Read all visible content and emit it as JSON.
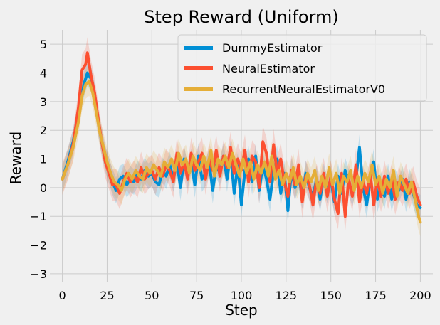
{
  "chart_data": {
    "type": "line",
    "title": "Step Reward (Uniform)",
    "xlabel": "Step",
    "ylabel": "Reward",
    "xlim": [
      -7,
      207
    ],
    "ylim": [
      -3.3,
      5.5
    ],
    "xticks": [
      0,
      25,
      50,
      75,
      100,
      125,
      150,
      175,
      200
    ],
    "yticks": [
      -3,
      -2,
      -1,
      0,
      1,
      2,
      3,
      4,
      5
    ],
    "grid": true,
    "legend_position": "upper-right",
    "bands": true,
    "series": [
      {
        "name": "DummyEstimator",
        "color": "#008fd5",
        "band_width": 0.45,
        "points": [
          [
            0,
            0.3
          ],
          [
            3,
            0.9
          ],
          [
            6,
            1.6
          ],
          [
            9,
            2.6
          ],
          [
            12,
            3.6
          ],
          [
            14,
            4.0
          ],
          [
            16,
            3.8
          ],
          [
            18,
            3.2
          ],
          [
            20,
            2.3
          ],
          [
            22,
            1.6
          ],
          [
            24,
            1.0
          ],
          [
            26,
            0.6
          ],
          [
            28,
            0.2
          ],
          [
            30,
            -0.1
          ],
          [
            32,
            0.3
          ],
          [
            34,
            0.4
          ],
          [
            36,
            0.1
          ],
          [
            38,
            0.3
          ],
          [
            40,
            0.2
          ],
          [
            42,
            0.5
          ],
          [
            44,
            0.3
          ],
          [
            46,
            0.6
          ],
          [
            48,
            0.4
          ],
          [
            50,
            0.5
          ],
          [
            52,
            0.2
          ],
          [
            54,
            0.1
          ],
          [
            56,
            0.6
          ],
          [
            58,
            0.4
          ],
          [
            60,
            0.8
          ],
          [
            62,
            0.3
          ],
          [
            64,
            0.9
          ],
          [
            66,
            0.0
          ],
          [
            68,
            1.0
          ],
          [
            70,
            0.4
          ],
          [
            72,
            0.9
          ],
          [
            74,
            0.1
          ],
          [
            76,
            1.1
          ],
          [
            78,
            0.3
          ],
          [
            80,
            0.5
          ],
          [
            82,
            0.9
          ],
          [
            84,
            -0.1
          ],
          [
            86,
            0.8
          ],
          [
            88,
            0.5
          ],
          [
            90,
            1.1
          ],
          [
            92,
            0.3
          ],
          [
            94,
            1.2
          ],
          [
            96,
            -0.2
          ],
          [
            98,
            0.8
          ],
          [
            100,
            -0.6
          ],
          [
            102,
            0.6
          ],
          [
            104,
            1.0
          ],
          [
            106,
            0.2
          ],
          [
            108,
            1.1
          ],
          [
            110,
            -0.1
          ],
          [
            112,
            0.8
          ],
          [
            114,
            0.3
          ],
          [
            116,
            -0.4
          ],
          [
            118,
            0.6
          ],
          [
            120,
            1.0
          ],
          [
            122,
            -0.2
          ],
          [
            124,
            0.5
          ],
          [
            126,
            -0.8
          ],
          [
            128,
            0.6
          ],
          [
            130,
            0.0
          ],
          [
            132,
            0.4
          ],
          [
            134,
            -0.3
          ],
          [
            136,
            0.5
          ],
          [
            138,
            0.0
          ],
          [
            140,
            -0.3
          ],
          [
            142,
            0.3
          ],
          [
            144,
            -0.4
          ],
          [
            146,
            0.4
          ],
          [
            148,
            -0.1
          ],
          [
            150,
            0.3
          ],
          [
            152,
            -0.5
          ],
          [
            154,
            0.4
          ],
          [
            156,
            -0.2
          ],
          [
            158,
            0.6
          ],
          [
            160,
            0.2
          ],
          [
            162,
            -0.2
          ],
          [
            164,
            0.3
          ],
          [
            166,
            1.4
          ],
          [
            168,
            0.0
          ],
          [
            170,
            -0.6
          ],
          [
            172,
            0.3
          ],
          [
            174,
            0.9
          ],
          [
            176,
            -0.4
          ],
          [
            178,
            0.1
          ],
          [
            180,
            -0.3
          ],
          [
            182,
            0.4
          ],
          [
            184,
            -0.4
          ],
          [
            186,
            0.2
          ],
          [
            188,
            -0.1
          ],
          [
            190,
            0.3
          ],
          [
            192,
            -0.4
          ],
          [
            194,
            0.2
          ],
          [
            196,
            -0.2
          ],
          [
            198,
            -0.6
          ],
          [
            200,
            -0.7
          ]
        ]
      },
      {
        "name": "NeuralEstimator",
        "color": "#fc4f30",
        "band_width": 0.55,
        "points": [
          [
            0,
            0.3
          ],
          [
            3,
            0.8
          ],
          [
            6,
            1.5
          ],
          [
            9,
            2.8
          ],
          [
            11,
            4.1
          ],
          [
            13,
            4.3
          ],
          [
            14,
            4.7
          ],
          [
            16,
            3.9
          ],
          [
            18,
            3.3
          ],
          [
            20,
            2.4
          ],
          [
            22,
            1.6
          ],
          [
            24,
            0.9
          ],
          [
            26,
            0.5
          ],
          [
            28,
            0.1
          ],
          [
            30,
            0.1
          ],
          [
            32,
            -0.2
          ],
          [
            34,
            0.2
          ],
          [
            36,
            0.5
          ],
          [
            38,
            0.2
          ],
          [
            40,
            0.4
          ],
          [
            42,
            0.2
          ],
          [
            44,
            0.7
          ],
          [
            46,
            0.3
          ],
          [
            48,
            0.5
          ],
          [
            50,
            0.6
          ],
          [
            52,
            0.3
          ],
          [
            54,
            0.7
          ],
          [
            56,
            0.4
          ],
          [
            58,
            0.8
          ],
          [
            60,
            0.6
          ],
          [
            62,
            0.2
          ],
          [
            64,
            1.2
          ],
          [
            66,
            0.5
          ],
          [
            68,
            0.9
          ],
          [
            70,
            0.3
          ],
          [
            72,
            1.2
          ],
          [
            74,
            0.6
          ],
          [
            76,
            0.9
          ],
          [
            78,
            1.2
          ],
          [
            80,
            0.3
          ],
          [
            82,
            1.0
          ],
          [
            84,
            0.6
          ],
          [
            86,
            1.3
          ],
          [
            88,
            0.4
          ],
          [
            90,
            1.1
          ],
          [
            92,
            0.7
          ],
          [
            94,
            1.4
          ],
          [
            96,
            0.5
          ],
          [
            98,
            1.0
          ],
          [
            100,
            0.6
          ],
          [
            102,
            1.3
          ],
          [
            104,
            0.2
          ],
          [
            106,
            1.1
          ],
          [
            108,
            0.9
          ],
          [
            110,
            0.0
          ],
          [
            112,
            1.6
          ],
          [
            114,
            1.2
          ],
          [
            116,
            0.2
          ],
          [
            118,
            1.5
          ],
          [
            120,
            0.5
          ],
          [
            122,
            1.0
          ],
          [
            124,
            0.2
          ],
          [
            126,
            -0.3
          ],
          [
            128,
            0.6
          ],
          [
            130,
            0.1
          ],
          [
            132,
            0.8
          ],
          [
            134,
            -0.5
          ],
          [
            136,
            0.4
          ],
          [
            138,
            0.1
          ],
          [
            140,
            -0.6
          ],
          [
            142,
            0.3
          ],
          [
            144,
            -0.2
          ],
          [
            146,
            0.5
          ],
          [
            148,
            -0.3
          ],
          [
            150,
            0.4
          ],
          [
            152,
            -0.4
          ],
          [
            154,
            -0.9
          ],
          [
            156,
            0.5
          ],
          [
            158,
            -1.0
          ],
          [
            160,
            0.3
          ],
          [
            162,
            -0.3
          ],
          [
            164,
            0.8
          ],
          [
            166,
            -0.5
          ],
          [
            168,
            0.2
          ],
          [
            170,
            -0.2
          ],
          [
            172,
            0.5
          ],
          [
            174,
            -0.6
          ],
          [
            176,
            0.3
          ],
          [
            178,
            -0.3
          ],
          [
            180,
            0.4
          ],
          [
            182,
            -0.2
          ],
          [
            184,
            0.3
          ],
          [
            186,
            -0.4
          ],
          [
            188,
            0.2
          ],
          [
            190,
            -0.1
          ],
          [
            192,
            0.3
          ],
          [
            194,
            -0.2
          ],
          [
            196,
            0.2
          ],
          [
            198,
            -0.3
          ],
          [
            200,
            -0.6
          ]
        ]
      },
      {
        "name": "RecurrentNeuralEstimatorV0",
        "color": "#e5ae38",
        "band_width": 0.5,
        "points": [
          [
            0,
            0.3
          ],
          [
            3,
            0.8
          ],
          [
            6,
            1.4
          ],
          [
            9,
            2.3
          ],
          [
            11,
            3.2
          ],
          [
            13,
            3.6
          ],
          [
            15,
            3.7
          ],
          [
            17,
            3.3
          ],
          [
            19,
            2.6
          ],
          [
            21,
            1.9
          ],
          [
            23,
            1.4
          ],
          [
            25,
            0.9
          ],
          [
            27,
            0.5
          ],
          [
            29,
            0.2
          ],
          [
            31,
            0.1
          ],
          [
            33,
            -0.1
          ],
          [
            35,
            0.3
          ],
          [
            37,
            0.5
          ],
          [
            39,
            0.3
          ],
          [
            41,
            0.6
          ],
          [
            43,
            0.4
          ],
          [
            45,
            0.3
          ],
          [
            47,
            0.7
          ],
          [
            49,
            0.5
          ],
          [
            51,
            0.8
          ],
          [
            53,
            0.6
          ],
          [
            55,
            0.4
          ],
          [
            57,
            0.9
          ],
          [
            59,
            0.7
          ],
          [
            61,
            1.0
          ],
          [
            63,
            0.6
          ],
          [
            65,
            1.2
          ],
          [
            67,
            0.8
          ],
          [
            69,
            1.0
          ],
          [
            71,
            0.5
          ],
          [
            73,
            1.1
          ],
          [
            75,
            0.8
          ],
          [
            77,
            0.6
          ],
          [
            79,
            1.1
          ],
          [
            81,
            0.7
          ],
          [
            83,
            1.3
          ],
          [
            85,
            0.4
          ],
          [
            87,
            1.0
          ],
          [
            89,
            0.8
          ],
          [
            91,
            1.1
          ],
          [
            93,
            0.7
          ],
          [
            95,
            1.2
          ],
          [
            97,
            0.8
          ],
          [
            99,
            0.4
          ],
          [
            101,
            1.0
          ],
          [
            103,
            0.5
          ],
          [
            105,
            0.9
          ],
          [
            107,
            0.3
          ],
          [
            109,
            0.8
          ],
          [
            111,
            0.5
          ],
          [
            113,
            0.9
          ],
          [
            115,
            0.4
          ],
          [
            117,
            1.1
          ],
          [
            119,
            0.3
          ],
          [
            121,
            0.6
          ],
          [
            123,
            0.1
          ],
          [
            125,
            0.5
          ],
          [
            127,
            0.2
          ],
          [
            129,
            0.7
          ],
          [
            131,
            0.1
          ],
          [
            133,
            0.4
          ],
          [
            135,
            0.0
          ],
          [
            137,
            0.5
          ],
          [
            139,
            0.2
          ],
          [
            141,
            0.6
          ],
          [
            143,
            -0.1
          ],
          [
            145,
            0.4
          ],
          [
            147,
            0.0
          ],
          [
            149,
            0.7
          ],
          [
            151,
            0.1
          ],
          [
            153,
            0.5
          ],
          [
            155,
            -0.2
          ],
          [
            157,
            0.4
          ],
          [
            159,
            0.2
          ],
          [
            161,
            0.6
          ],
          [
            163,
            -0.1
          ],
          [
            165,
            0.4
          ],
          [
            167,
            0.0
          ],
          [
            169,
            0.5
          ],
          [
            171,
            0.2
          ],
          [
            173,
            0.8
          ],
          [
            175,
            0.1
          ],
          [
            177,
            0.4
          ],
          [
            179,
            -0.2
          ],
          [
            181,
            0.3
          ],
          [
            183,
            0.0
          ],
          [
            185,
            0.6
          ],
          [
            187,
            -0.3
          ],
          [
            189,
            0.4
          ],
          [
            191,
            0.1
          ],
          [
            193,
            -0.2
          ],
          [
            195,
            0.2
          ],
          [
            197,
            -0.4
          ],
          [
            199,
            -1.0
          ],
          [
            200,
            -1.2
          ]
        ]
      }
    ]
  }
}
